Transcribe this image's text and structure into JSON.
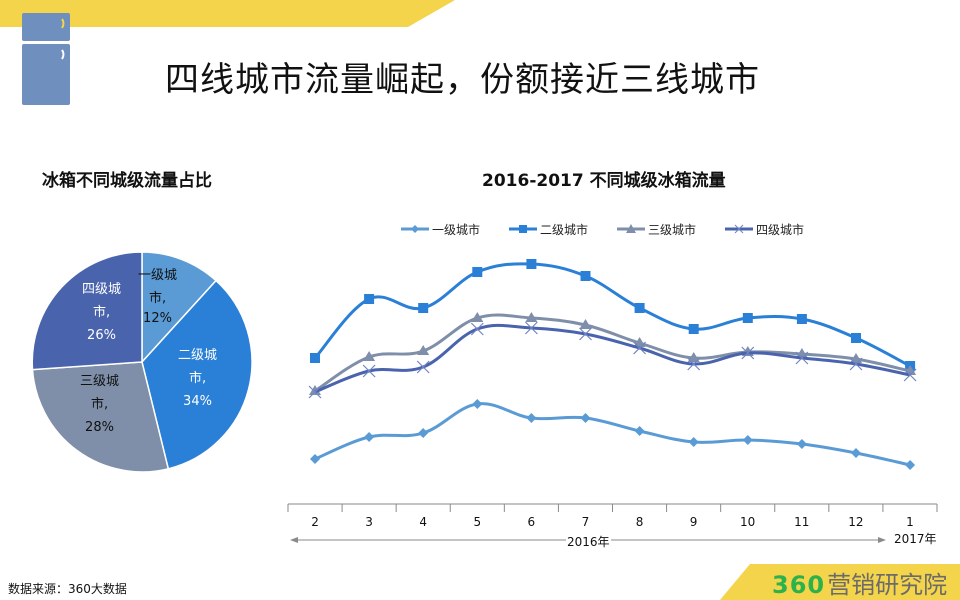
{
  "page": {
    "title": "四线城市流量崛起，份额接近三线城市",
    "source": "数据来源：360大数据",
    "brand_number": "360",
    "brand_text": "营销研究院",
    "colors": {
      "top_band": "#f4d44a",
      "fridge": "#6f8fbe",
      "brand_band": "#f4d44a",
      "brand_number": "#2bb24c"
    }
  },
  "icons": {
    "fridge": "fridge-icon"
  },
  "pie": {
    "title": "冰箱不同城级流量占比",
    "labels": [
      {
        "line1": "一级城",
        "line2": "市,",
        "line3": "12%"
      },
      {
        "line1": "二级城",
        "line2": "市,",
        "line3": "34%"
      },
      {
        "line1": "三级城",
        "line2": "市,",
        "line3": "28%"
      },
      {
        "line1": "四级城",
        "line2": "市,",
        "line3": "26%"
      }
    ]
  },
  "line": {
    "title": "2016-2017 不同城级冰箱流量",
    "legend": [
      "一级城市",
      "二级城市",
      "三级城市",
      "四级城市"
    ],
    "x_labels": [
      "2",
      "3",
      "4",
      "5",
      "6",
      "7",
      "8",
      "9",
      "10",
      "11",
      "12",
      "1"
    ],
    "year_2016": "2016年",
    "year_2017": "2017年"
  },
  "chart_data": [
    {
      "type": "pie",
      "title": "冰箱不同城级流量占比",
      "categories": [
        "一级城市",
        "二级城市",
        "三级城市",
        "四级城市"
      ],
      "values": [
        12,
        34,
        28,
        26
      ],
      "unit": "%",
      "colors": [
        "#5b9bd5",
        "#2a7fd6",
        "#7f8fa9",
        "#4a63ad"
      ],
      "legend": "none (labels on slices)"
    },
    {
      "type": "line",
      "title": "2016-2017 不同城级冰箱流量",
      "xlabel": "2016年 (2-12) / 2017年 (1)",
      "ylabel": "",
      "y_axis_shown": false,
      "grid": false,
      "legend_position": "top",
      "categories": [
        "2",
        "3",
        "4",
        "5",
        "6",
        "7",
        "8",
        "9",
        "10",
        "11",
        "12",
        "1"
      ],
      "values_note": "No y-axis scale shown; values are relative heights (pixels above baseline) read from the plot",
      "series": [
        {
          "name": "一级城市",
          "marker": "diamond",
          "color": "#5b9bd5",
          "values": [
            31,
            53,
            57,
            86,
            72,
            72,
            59,
            48,
            50,
            46,
            37,
            25
          ]
        },
        {
          "name": "二级城市",
          "marker": "square",
          "color": "#2a7fd6",
          "values": [
            132,
            191,
            182,
            218,
            226,
            214,
            182,
            161,
            172,
            171,
            152,
            124
          ]
        },
        {
          "name": "三级城市",
          "marker": "triangle",
          "color": "#7f8fa9",
          "values": [
            99,
            133,
            139,
            172,
            172,
            165,
            147,
            132,
            138,
            136,
            131,
            119
          ]
        },
        {
          "name": "四级城市",
          "marker": "x",
          "color": "#4a63ad",
          "values": [
            98,
            119,
            123,
            161,
            162,
            156,
            142,
            126,
            137,
            132,
            126,
            115
          ]
        }
      ]
    }
  ]
}
